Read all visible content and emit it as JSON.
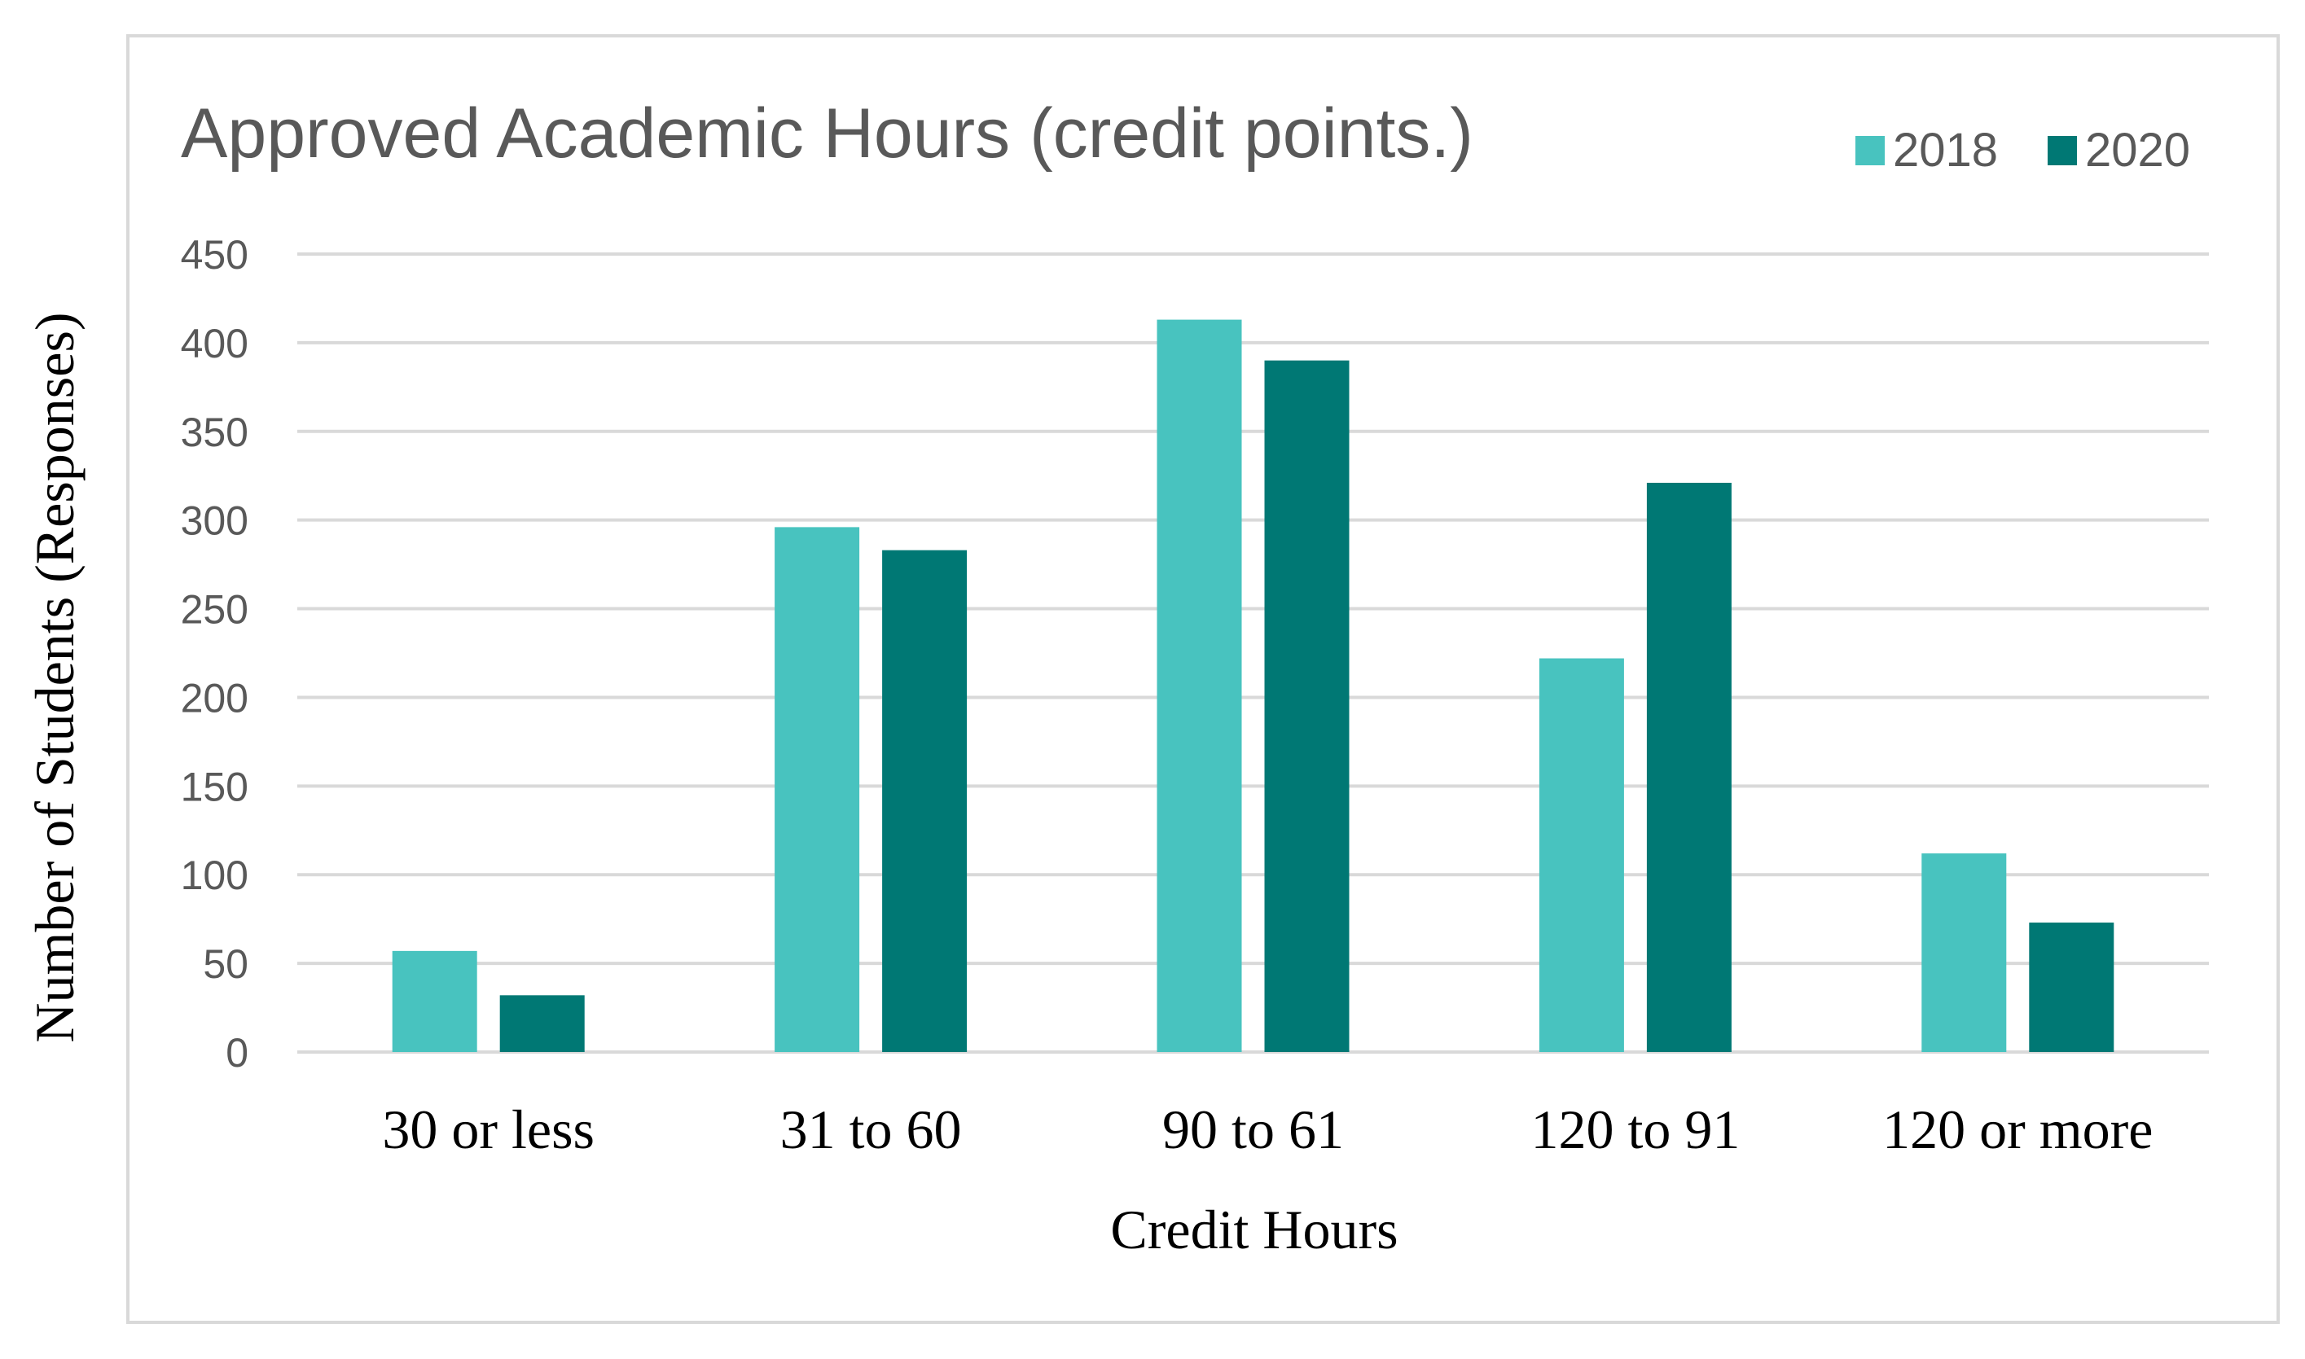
{
  "chart_data": {
    "type": "bar",
    "title": "Approved Academic Hours (credit points.)",
    "xlabel": "Credit Hours",
    "ylabel": "Number of Students (Responses)",
    "categories": [
      "30 or less",
      "31 to 60",
      "90 to 61",
      "120 to 91",
      "120 or more"
    ],
    "series": [
      {
        "name": "2018",
        "color": "#48c3bf",
        "values": [
          57,
          296,
          413,
          222,
          112
        ]
      },
      {
        "name": "2020",
        "color": "#007874",
        "values": [
          32,
          283,
          390,
          321,
          73
        ]
      }
    ],
    "ylim": [
      0,
      450
    ],
    "yticks": [
      "0",
      "50",
      "100",
      "150",
      "200",
      "250",
      "300",
      "350",
      "400",
      "450"
    ],
    "grid": true,
    "legend_position": "top-right"
  }
}
